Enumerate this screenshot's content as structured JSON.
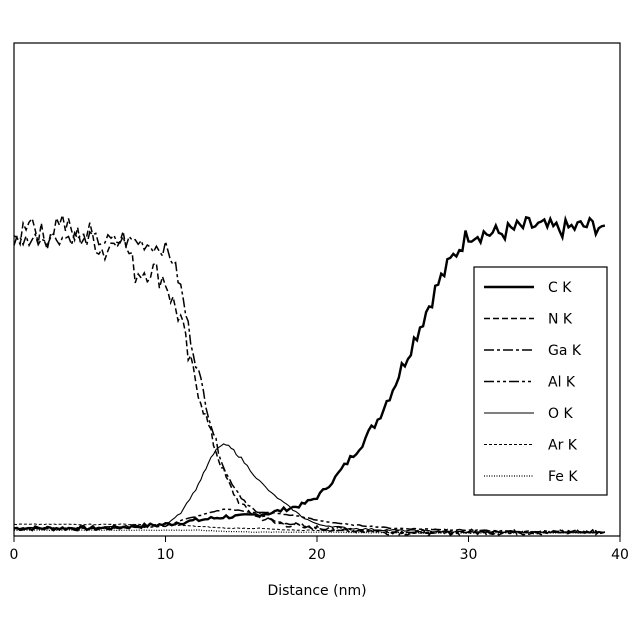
{
  "chart_data": {
    "type": "line",
    "xlabel": "Distance (nm)",
    "ylabel": "",
    "xlim": [
      0,
      40
    ],
    "ylim": [
      0,
      1
    ],
    "x_ticks": [
      0,
      10,
      20,
      30,
      40
    ],
    "grid": false,
    "legend_position": "right",
    "series": [
      {
        "name": "C K",
        "dash": "",
        "width": 2.4,
        "x": [
          0,
          2,
          4,
          6,
          8,
          10,
          11,
          12,
          13,
          14,
          15,
          16,
          17,
          18,
          19,
          20,
          21,
          22,
          23,
          24,
          25,
          26,
          27,
          28,
          29,
          30,
          32,
          34,
          36,
          38,
          39
        ],
        "y": [
          0.02,
          0.02,
          0.02,
          0.02,
          0.025,
          0.03,
          0.035,
          0.04,
          0.045,
          0.05,
          0.05,
          0.055,
          0.06,
          0.07,
          0.08,
          0.1,
          0.14,
          0.19,
          0.24,
          0.3,
          0.38,
          0.47,
          0.56,
          0.65,
          0.72,
          0.78,
          0.78,
          0.8,
          0.79,
          0.8,
          0.8
        ]
      },
      {
        "name": "N K",
        "dash": "6,3",
        "width": 1.5,
        "x": [
          0,
          1,
          2,
          3,
          4,
          5,
          6,
          7,
          8,
          9,
          10,
          10.5,
          11,
          11.5,
          12,
          12.5,
          13,
          13.5,
          14,
          14.5,
          15,
          16,
          17,
          18,
          19,
          20,
          22,
          25,
          30,
          35,
          39
        ],
        "y": [
          0.74,
          0.83,
          0.76,
          0.82,
          0.77,
          0.78,
          0.73,
          0.79,
          0.68,
          0.69,
          0.66,
          0.6,
          0.56,
          0.46,
          0.4,
          0.33,
          0.26,
          0.2,
          0.15,
          0.11,
          0.08,
          0.05,
          0.04,
          0.03,
          0.025,
          0.02,
          0.015,
          0.01,
          0.01,
          0.01,
          0.01
        ]
      },
      {
        "name": "Ga K",
        "dash": "10,3,3,3",
        "width": 1.5,
        "x": [
          0,
          2,
          4,
          6,
          8,
          10,
          10.5,
          11,
          11.5,
          12,
          12.5,
          13,
          13.5,
          14,
          15,
          16,
          17,
          18,
          20,
          22,
          25,
          30,
          35,
          39
        ],
        "y": [
          0.76,
          0.77,
          0.77,
          0.76,
          0.76,
          0.74,
          0.71,
          0.64,
          0.54,
          0.45,
          0.37,
          0.29,
          0.22,
          0.16,
          0.1,
          0.06,
          0.04,
          0.03,
          0.02,
          0.015,
          0.01,
          0.01,
          0.01,
          0.01
        ]
      },
      {
        "name": "Al K",
        "dash": "10,3,3,3,3,3",
        "width": 1.5,
        "x": [
          0,
          5,
          10,
          11,
          12,
          13,
          14,
          15,
          16,
          17,
          18,
          19,
          20,
          22,
          25,
          30,
          35,
          39
        ],
        "y": [
          0.02,
          0.02,
          0.025,
          0.04,
          0.05,
          0.06,
          0.07,
          0.065,
          0.06,
          0.06,
          0.055,
          0.05,
          0.04,
          0.03,
          0.02,
          0.015,
          0.01,
          0.01
        ]
      },
      {
        "name": "O K",
        "dash": "",
        "width": 1.1,
        "x": [
          0,
          5,
          10,
          11,
          12,
          12.5,
          13,
          13.5,
          14,
          14.5,
          15,
          16,
          17,
          18,
          19,
          20,
          22,
          25,
          30,
          35,
          39
        ],
        "y": [
          0.02,
          0.02,
          0.03,
          0.06,
          0.12,
          0.16,
          0.2,
          0.23,
          0.235,
          0.22,
          0.2,
          0.15,
          0.11,
          0.08,
          0.05,
          0.03,
          0.02,
          0.015,
          0.01,
          0.01,
          0.01
        ]
      },
      {
        "name": "Ar K",
        "dash": "3,2",
        "width": 1.0,
        "x": [
          0,
          5,
          10,
          12,
          14,
          16,
          18,
          20,
          25,
          30,
          35,
          39
        ],
        "y": [
          0.03,
          0.03,
          0.03,
          0.025,
          0.02,
          0.02,
          0.015,
          0.015,
          0.01,
          0.01,
          0.01,
          0.01
        ]
      },
      {
        "name": "Fe K",
        "dash": "1,1.5",
        "width": 1.2,
        "x": [
          0,
          5,
          10,
          12,
          14,
          16,
          18,
          20,
          25,
          30,
          35,
          39
        ],
        "y": [
          0.015,
          0.015,
          0.015,
          0.015,
          0.012,
          0.01,
          0.01,
          0.01,
          0.008,
          0.008,
          0.008,
          0.008
        ]
      }
    ]
  }
}
